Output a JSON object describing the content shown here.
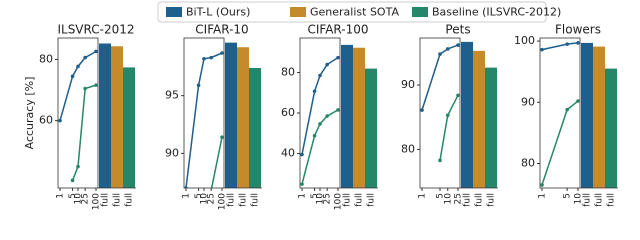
{
  "legend": [
    {
      "name": "BiT-L (Ours)",
      "color": "#1f5f8b"
    },
    {
      "name": "Generalist SOTA",
      "color": "#c58a2c"
    },
    {
      "name": "Baseline (ILSVRC-2012)",
      "color": "#24876a"
    }
  ],
  "chart_data": [
    {
      "type": "combo",
      "title": "ILSVRC-2012",
      "y_label": "Accuracy [%]",
      "ylim": [
        38,
        87
      ],
      "yticks": [
        60,
        80
      ],
      "log_x": true,
      "xlim": [
        1,
        100
      ],
      "xticks": [
        1,
        5,
        10,
        25,
        100
      ],
      "x": [
        1,
        5,
        10,
        25,
        100
      ],
      "series": [
        {
          "values": [
            60,
            74.5,
            77.7,
            80.6,
            82.6
          ]
        },
        {
          "values": [
            null,
            40.5,
            45,
            70.5,
            71.6
          ]
        }
      ],
      "bars": {
        "categories": [
          "full",
          "full",
          "full"
        ],
        "values": [
          85.2,
          84.3,
          77.4
        ]
      }
    },
    {
      "type": "combo",
      "title": "CIFAR-10",
      "ylim": [
        87,
        100
      ],
      "yticks": [
        90,
        95
      ],
      "log_x": true,
      "xlim": [
        1,
        100
      ],
      "xticks": [
        1,
        5,
        10,
        25,
        100
      ],
      "x": [
        1,
        5,
        10,
        25,
        100
      ],
      "series": [
        {
          "values": [
            87,
            95.9,
            98.2,
            98.3,
            98.7
          ]
        },
        {
          "values": [
            null,
            null,
            null,
            86.8,
            91.4
          ]
        }
      ],
      "bars": {
        "categories": [
          "full",
          "full",
          "full"
        ],
        "values": [
          99.6,
          99.2,
          97.4
        ]
      }
    },
    {
      "type": "combo",
      "title": "CIFAR-100",
      "ylim": [
        23,
        97
      ],
      "yticks": [
        40,
        60,
        80
      ],
      "log_x": true,
      "xlim": [
        1,
        100
      ],
      "xticks": [
        1,
        5,
        10,
        25,
        100
      ],
      "x": [
        1,
        5,
        10,
        25,
        100
      ],
      "series": [
        {
          "values": [
            39.5,
            70.7,
            78.5,
            83.9,
            87.3
          ]
        },
        {
          "values": [
            24.9,
            48.8,
            54.6,
            58.5,
            61.5
          ]
        }
      ],
      "bars": {
        "categories": [
          "full",
          "full",
          "full"
        ],
        "values": [
          93.6,
          92.2,
          81.9
        ]
      }
    },
    {
      "type": "combo",
      "title": "Pets",
      "ylim": [
        74,
        97.3
      ],
      "yticks": [
        80,
        90
      ],
      "log_x": true,
      "xlim": [
        1,
        25
      ],
      "xticks": [
        1,
        5,
        10,
        25
      ],
      "x": [
        1,
        5,
        10,
        25
      ],
      "series": [
        {
          "values": [
            86.1,
            94.8,
            95.6,
            96.2
          ]
        },
        {
          "values": [
            null,
            78.3,
            85.3,
            88.4
          ]
        }
      ],
      "bars": {
        "categories": [
          "full",
          "full",
          "full"
        ],
        "values": [
          96.7,
          95.3,
          92.7
        ]
      }
    },
    {
      "type": "combo",
      "title": "Flowers",
      "ylim": [
        76,
        100.5
      ],
      "yticks": [
        80,
        90,
        100
      ],
      "log_x": true,
      "xlim": [
        1,
        10
      ],
      "xticks": [
        1,
        5,
        10
      ],
      "x": [
        1,
        5,
        10
      ],
      "series": [
        {
          "values": [
            98.6,
            99.5,
            99.7
          ]
        },
        {
          "values": [
            76.5,
            88.8,
            90.2
          ]
        }
      ],
      "bars": {
        "categories": [
          "full",
          "full",
          "full"
        ],
        "values": [
          99.7,
          99.1,
          95.5
        ]
      }
    }
  ]
}
